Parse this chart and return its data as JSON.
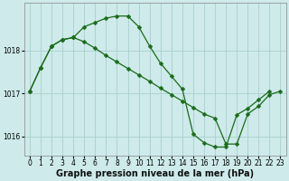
{
  "xlabel": "Graphe pression niveau de la mer (hPa)",
  "background_color": "#ceeaea",
  "grid_color": "#aacfcf",
  "line_color": "#1a6b1a",
  "x_ticks": [
    0,
    1,
    2,
    3,
    4,
    5,
    6,
    7,
    8,
    9,
    10,
    11,
    12,
    13,
    14,
    15,
    16,
    17,
    18,
    19,
    20,
    21,
    22,
    23
  ],
  "y_ticks": [
    1016,
    1017,
    1018
  ],
  "ylim": [
    1015.55,
    1019.1
  ],
  "xlim": [
    -0.5,
    23.5
  ],
  "series1_x": [
    0,
    1,
    2,
    3,
    4,
    5,
    6,
    7,
    8,
    9,
    10,
    11,
    12,
    13,
    14,
    15,
    16,
    17,
    18,
    19,
    20,
    21,
    22
  ],
  "series1_y": [
    1017.05,
    1017.6,
    1018.1,
    1018.25,
    1018.3,
    1018.55,
    1018.65,
    1018.75,
    1018.8,
    1018.8,
    1018.55,
    1018.1,
    1017.7,
    1017.4,
    1017.1,
    1016.05,
    1015.85,
    1015.75,
    1015.75,
    1016.5,
    1016.65,
    1016.85,
    1017.05
  ],
  "series2_x": [
    0,
    1,
    2,
    3,
    4,
    5,
    6,
    7,
    8,
    9,
    10,
    11,
    12,
    13,
    14,
    15,
    16,
    17,
    18,
    19,
    20,
    21,
    22,
    23
  ],
  "series2_y": [
    1017.05,
    1017.6,
    1018.1,
    1018.25,
    1018.3,
    1018.2,
    1018.05,
    1017.88,
    1017.73,
    1017.58,
    1017.43,
    1017.28,
    1017.12,
    1016.97,
    1016.82,
    1016.67,
    1016.52,
    1016.42,
    1015.82,
    1015.82,
    1016.52,
    1016.7,
    1016.97,
    1017.05
  ],
  "fig_width": 3.2,
  "fig_height": 2.0,
  "dpi": 100,
  "tick_fontsize": 5.5,
  "xlabel_fontsize": 7,
  "marker_size": 2.5,
  "linewidth": 0.9
}
